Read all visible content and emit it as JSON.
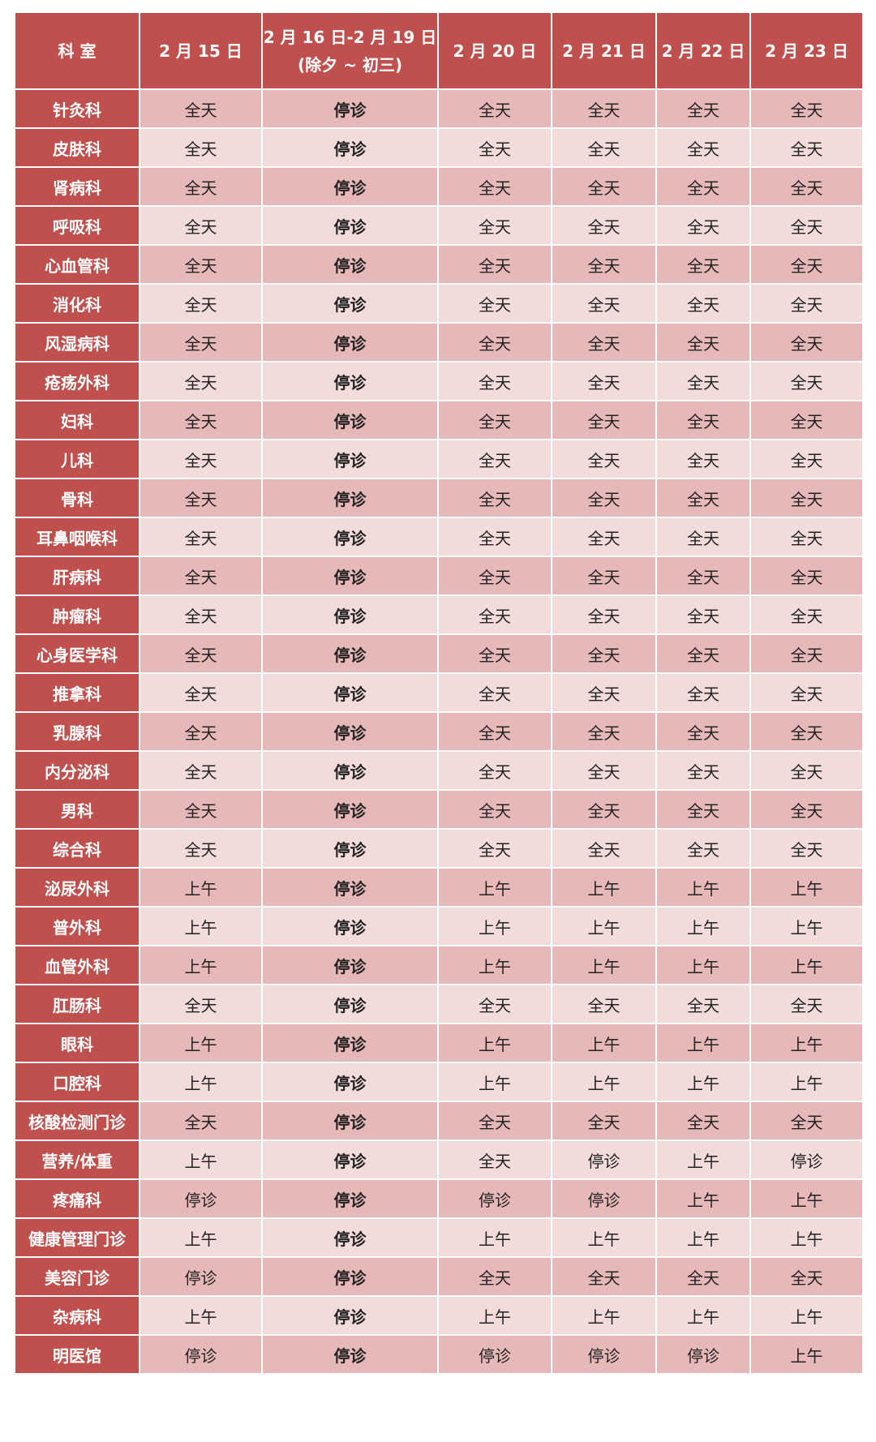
{
  "colors": {
    "header": "#c0504d",
    "row_dark": "#e6b8b7",
    "row_light": "#f2dcdb"
  },
  "headers": [
    "科 室",
    "2 月 15 日",
    "2 月 16 日-2 月 19 日",
    "(除夕 ~ 初三)",
    "2 月 20 日",
    "2 月 21 日",
    "2 月 22 日",
    "2 月 23 日"
  ],
  "rows": [
    [
      "针灸科",
      "全天",
      "停诊",
      "全天",
      "全天",
      "全天",
      "全天"
    ],
    [
      "皮肤科",
      "全天",
      "停诊",
      "全天",
      "全天",
      "全天",
      "全天"
    ],
    [
      "肾病科",
      "全天",
      "停诊",
      "全天",
      "全天",
      "全天",
      "全天"
    ],
    [
      "呼吸科",
      "全天",
      "停诊",
      "全天",
      "全天",
      "全天",
      "全天"
    ],
    [
      "心血管科",
      "全天",
      "停诊",
      "全天",
      "全天",
      "全天",
      "全天"
    ],
    [
      "消化科",
      "全天",
      "停诊",
      "全天",
      "全天",
      "全天",
      "全天"
    ],
    [
      "风湿病科",
      "全天",
      "停诊",
      "全天",
      "全天",
      "全天",
      "全天"
    ],
    [
      "疮疡外科",
      "全天",
      "停诊",
      "全天",
      "全天",
      "全天",
      "全天"
    ],
    [
      "妇科",
      "全天",
      "停诊",
      "全天",
      "全天",
      "全天",
      "全天"
    ],
    [
      "儿科",
      "全天",
      "停诊",
      "全天",
      "全天",
      "全天",
      "全天"
    ],
    [
      "骨科",
      "全天",
      "停诊",
      "全天",
      "全天",
      "全天",
      "全天"
    ],
    [
      "耳鼻咽喉科",
      "全天",
      "停诊",
      "全天",
      "全天",
      "全天",
      "全天"
    ],
    [
      "肝病科",
      "全天",
      "停诊",
      "全天",
      "全天",
      "全天",
      "全天"
    ],
    [
      "肿瘤科",
      "全天",
      "停诊",
      "全天",
      "全天",
      "全天",
      "全天"
    ],
    [
      "心身医学科",
      "全天",
      "停诊",
      "全天",
      "全天",
      "全天",
      "全天"
    ],
    [
      "推拿科",
      "全天",
      "停诊",
      "全天",
      "全天",
      "全天",
      "全天"
    ],
    [
      "乳腺科",
      "全天",
      "停诊",
      "全天",
      "全天",
      "全天",
      "全天"
    ],
    [
      "内分泌科",
      "全天",
      "停诊",
      "全天",
      "全天",
      "全天",
      "全天"
    ],
    [
      "男科",
      "全天",
      "停诊",
      "全天",
      "全天",
      "全天",
      "全天"
    ],
    [
      "综合科",
      "全天",
      "停诊",
      "全天",
      "全天",
      "全天",
      "全天"
    ],
    [
      "泌尿外科",
      "上午",
      "停诊",
      "上午",
      "上午",
      "上午",
      "上午"
    ],
    [
      "普外科",
      "上午",
      "停诊",
      "上午",
      "上午",
      "上午",
      "上午"
    ],
    [
      "血管外科",
      "上午",
      "停诊",
      "上午",
      "上午",
      "上午",
      "上午"
    ],
    [
      "肛肠科",
      "全天",
      "停诊",
      "全天",
      "全天",
      "全天",
      "全天"
    ],
    [
      "眼科",
      "上午",
      "停诊",
      "上午",
      "上午",
      "上午",
      "上午"
    ],
    [
      "口腔科",
      "上午",
      "停诊",
      "上午",
      "上午",
      "上午",
      "上午"
    ],
    [
      "核酸检测门诊",
      "全天",
      "停诊",
      "全天",
      "全天",
      "全天",
      "全天"
    ],
    [
      "营养/体重",
      "上午",
      "停诊",
      "全天",
      "停诊",
      "上午",
      "停诊"
    ],
    [
      "疼痛科",
      "停诊",
      "停诊",
      "停诊",
      "停诊",
      "上午",
      "上午"
    ],
    [
      "健康管理门诊",
      "上午",
      "停诊",
      "上午",
      "上午",
      "上午",
      "上午"
    ],
    [
      "美容门诊",
      "停诊",
      "停诊",
      "全天",
      "全天",
      "全天",
      "全天"
    ],
    [
      "杂病科",
      "上午",
      "停诊",
      "上午",
      "上午",
      "上午",
      "上午"
    ],
    [
      "明医馆",
      "停诊",
      "停诊",
      "停诊",
      "停诊",
      "停诊",
      "上午"
    ]
  ]
}
